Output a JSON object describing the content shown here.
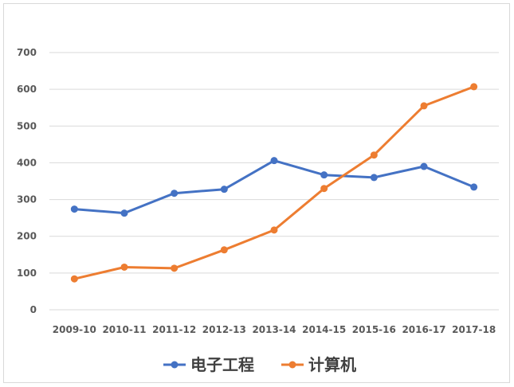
{
  "chart_data": {
    "type": "line",
    "title": "",
    "xlabel": "",
    "ylabel": "",
    "categories": [
      "2009-10",
      "2010-11",
      "2011-12",
      "2012-13",
      "2013-14",
      "2014-15",
      "2015-16",
      "2016-17",
      "2017-18"
    ],
    "ylim": [
      0,
      700
    ],
    "yticks": [
      0,
      100,
      200,
      300,
      400,
      500,
      600,
      700
    ],
    "grid": true,
    "legend": "bottom",
    "series": [
      {
        "name": "电子工程",
        "color": "#4472c4",
        "values": [
          274,
          263,
          317,
          328,
          406,
          367,
          360,
          390,
          334
        ]
      },
      {
        "name": "计算机",
        "color": "#ed7d31",
        "values": [
          84,
          116,
          113,
          163,
          217,
          330,
          421,
          555,
          607
        ]
      }
    ]
  }
}
